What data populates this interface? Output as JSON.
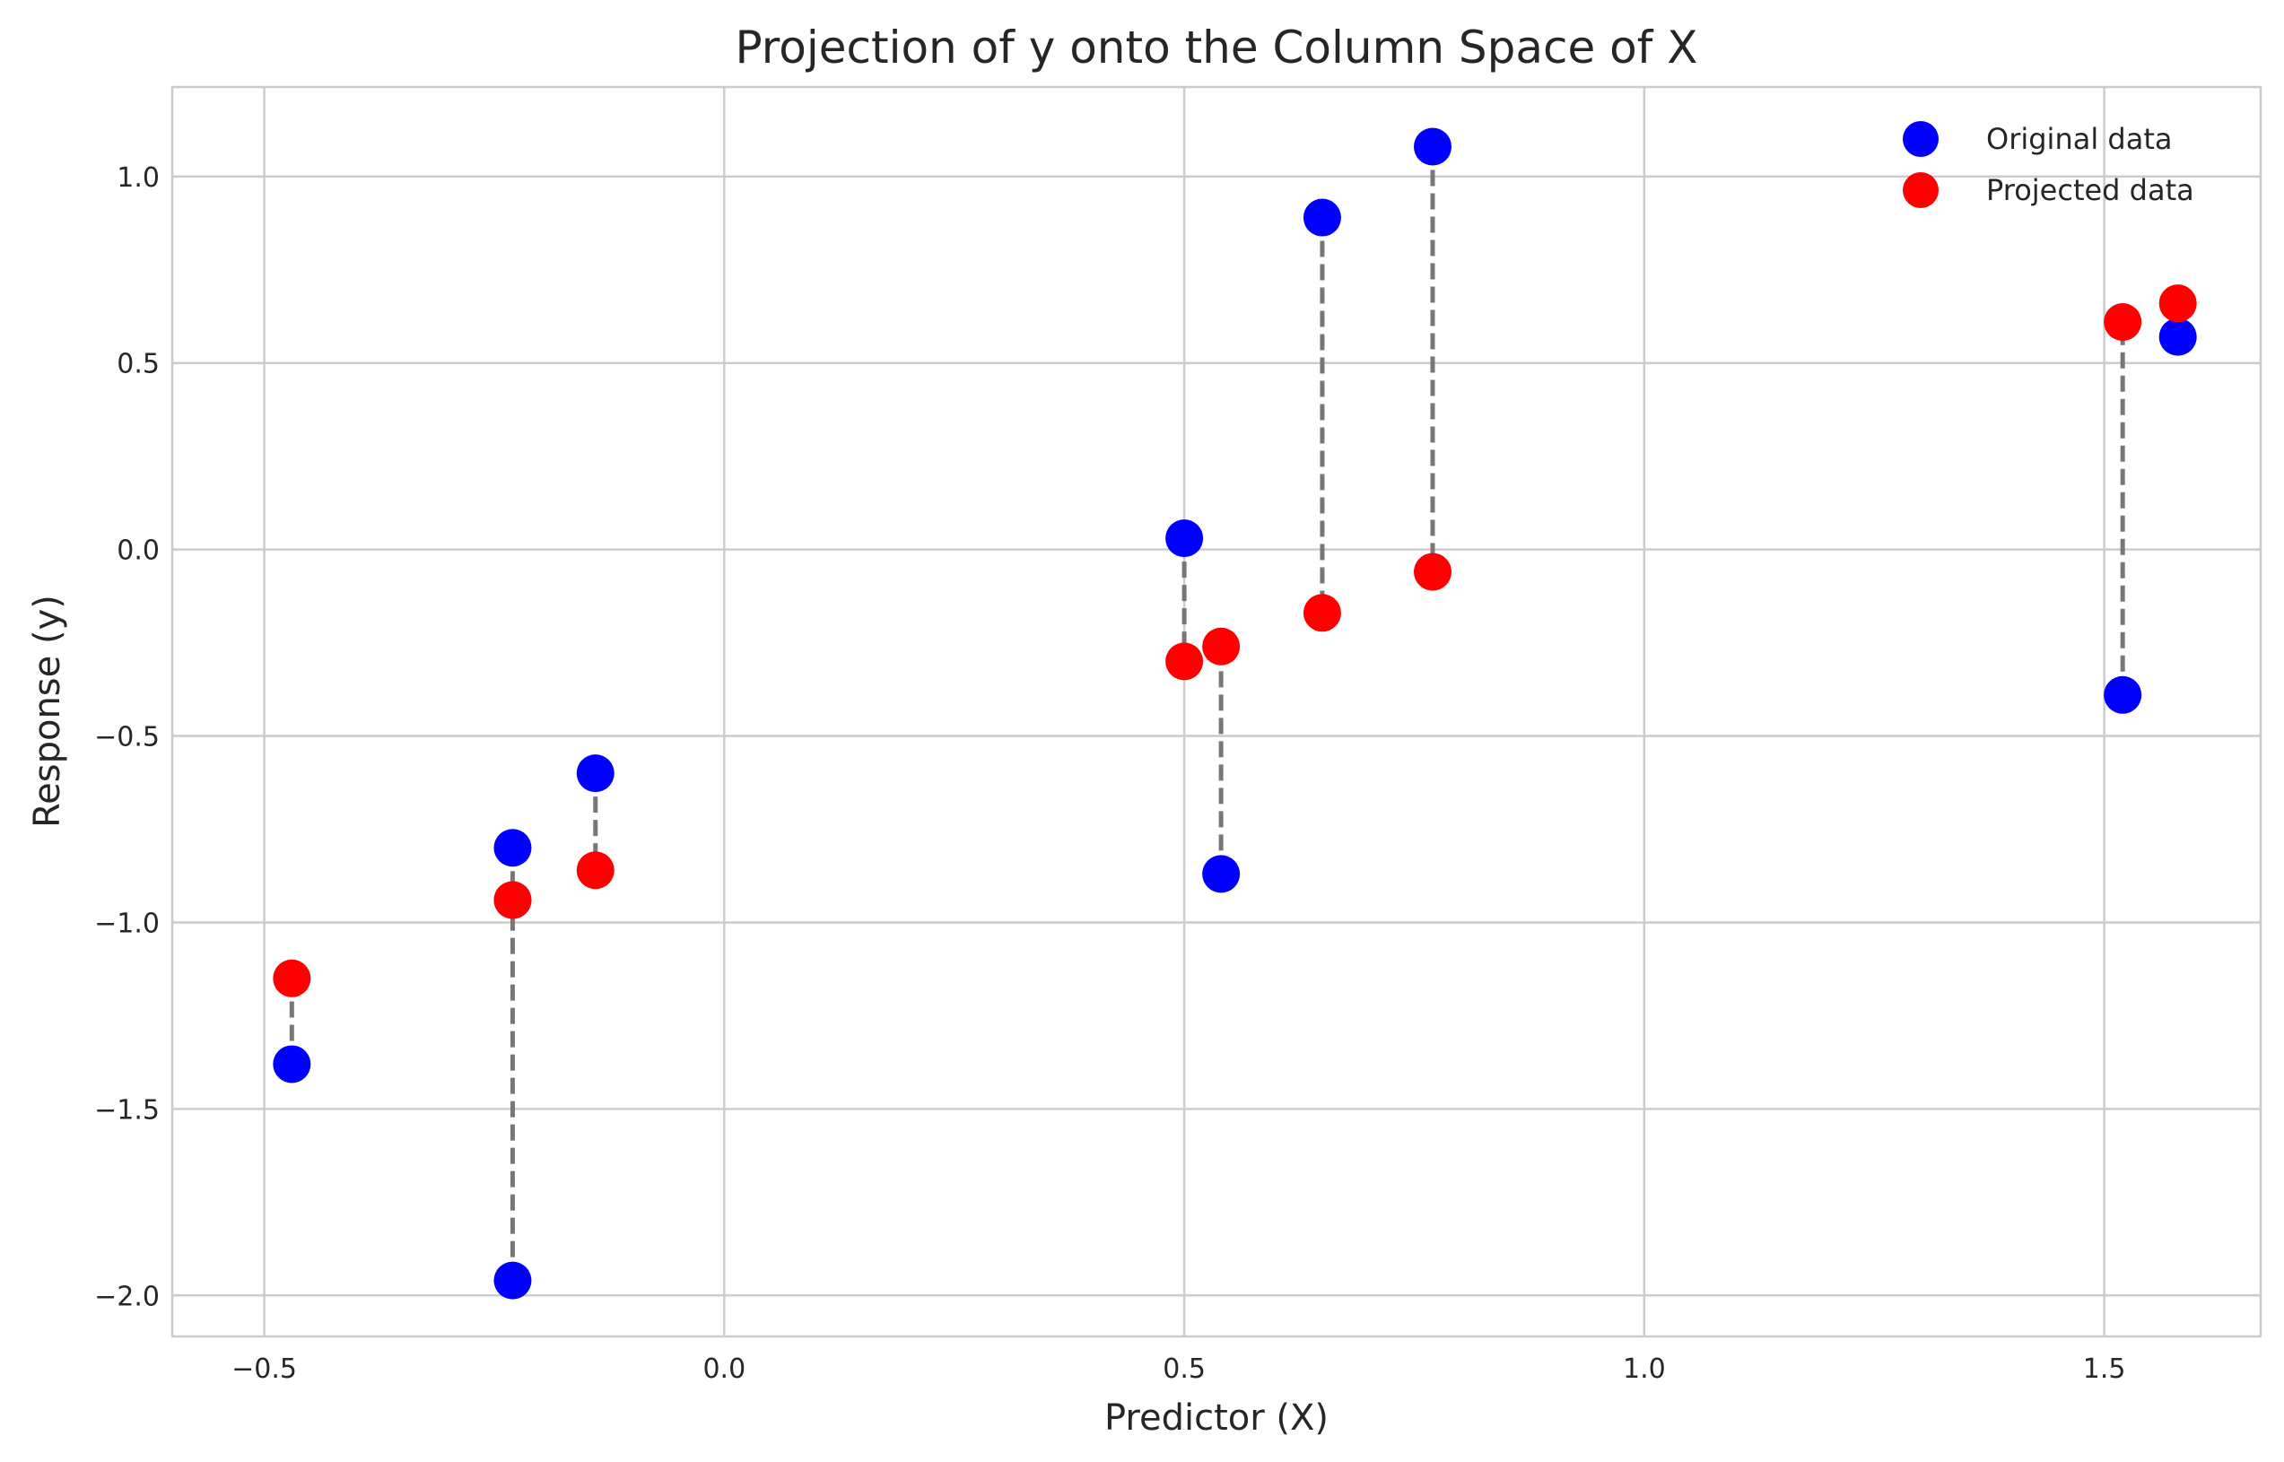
{
  "chart_data": {
    "type": "scatter",
    "title": "Projection of y onto the Column Space of X",
    "xlabel": "Predictor (X)",
    "ylabel": "Response (y)",
    "xlim": [
      -0.6,
      1.67
    ],
    "ylim": [
      -2.11,
      1.24
    ],
    "xticks": [
      -0.5,
      0.0,
      0.5,
      1.0,
      1.5
    ],
    "xtick_labels": [
      "−0.5",
      "0.0",
      "0.5",
      "1.0",
      "1.5"
    ],
    "yticks": [
      -2.0,
      -1.5,
      -1.0,
      -0.5,
      0.0,
      0.5,
      1.0
    ],
    "ytick_labels": [
      "−2.0",
      "−1.5",
      "−1.0",
      "−0.5",
      "0.0",
      "0.5",
      "1.0"
    ],
    "grid": true,
    "legend_position": "top-right",
    "series": [
      {
        "name": "Original data",
        "color": "#0000ff",
        "x": [
          -0.47,
          -0.23,
          -0.23,
          -0.14,
          0.5,
          0.54,
          0.65,
          0.77,
          1.52,
          1.58
        ],
        "y": [
          -1.38,
          -1.96,
          -0.8,
          -0.6,
          0.03,
          -0.87,
          0.89,
          1.08,
          -0.39,
          0.57
        ]
      },
      {
        "name": "Projected data",
        "color": "#ff0000",
        "x": [
          -0.47,
          -0.23,
          -0.23,
          -0.14,
          0.5,
          0.54,
          0.65,
          0.77,
          1.52,
          1.58
        ],
        "y": [
          -1.15,
          -0.94,
          -0.94,
          -0.86,
          -0.3,
          -0.26,
          -0.17,
          -0.06,
          0.61,
          0.66
        ]
      }
    ],
    "connector_color": "#777777"
  }
}
